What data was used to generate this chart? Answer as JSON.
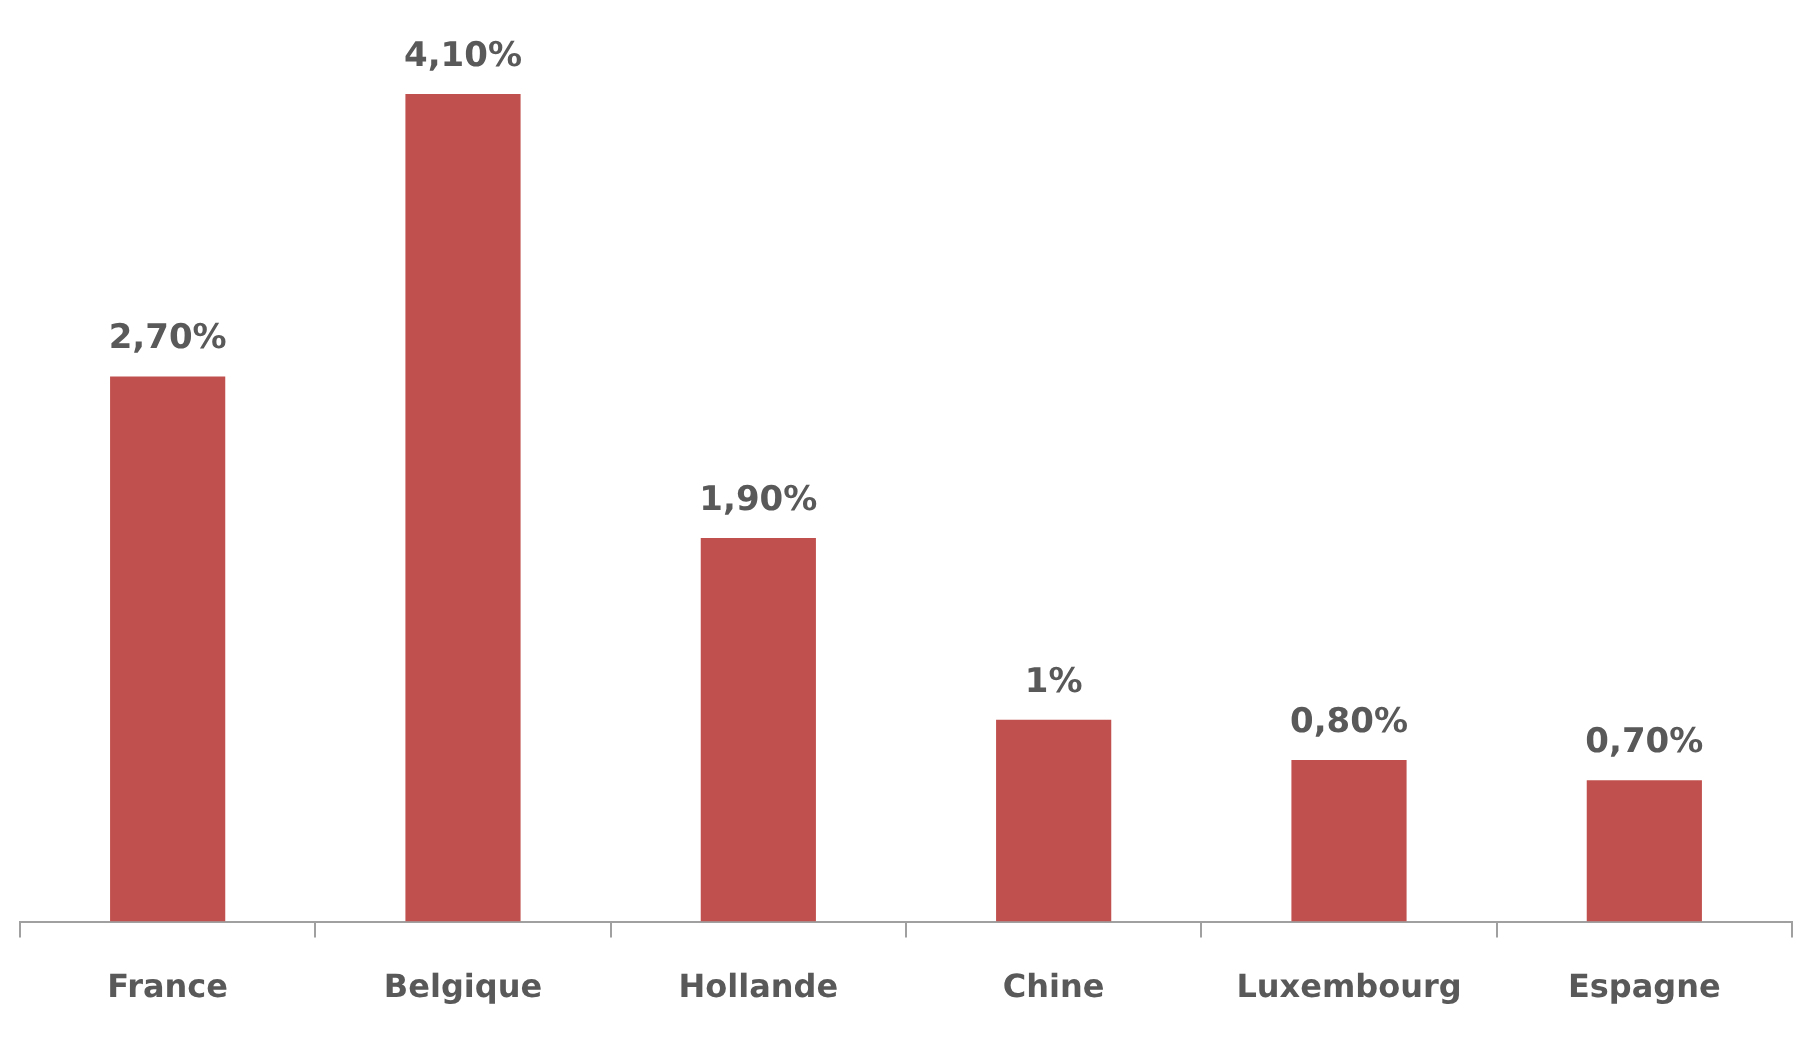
{
  "chart_data": {
    "type": "bar",
    "categories": [
      "France",
      "Belgique",
      "Hollande",
      "Chine",
      "Luxembourg",
      "Espagne"
    ],
    "values": [
      2.7,
      4.1,
      1.9,
      1,
      0.8,
      0.7
    ],
    "color": "#c0504d",
    "value_labels": [
      "2,70%",
      "4,10%",
      "1,90%",
      "1%",
      "0,80%",
      "0,70%"
    ],
    "tick_labels": "x"
  }
}
